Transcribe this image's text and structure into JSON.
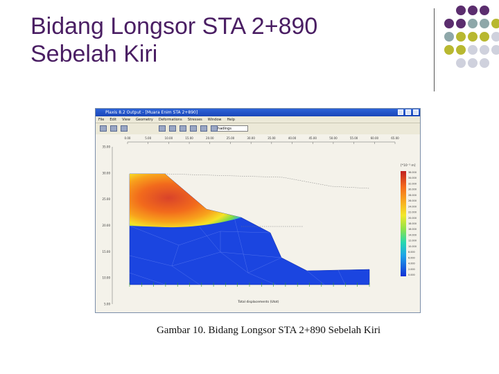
{
  "slide": {
    "title_line1": "Bidang Longsor STA 2+890",
    "title_line2": "Sebelah Kiri",
    "caption": "Gambar 10. Bidang Longsor STA 2+890 Sebelah Kiri"
  },
  "colors": {
    "title": "#4a1e63",
    "dot_purple": "#5b2d6e",
    "dot_teal": "#8ea7a9",
    "dot_olive": "#b8b830",
    "dot_grey": "#cfd1dd"
  },
  "app": {
    "window_title": "Plaxis 8.2 Output - [Muara Enim STA 2+890]",
    "menu": [
      "File",
      "Edit",
      "View",
      "Geometry",
      "Deformations",
      "Stresses",
      "Window",
      "Help"
    ],
    "toolbar_select": "Shadings",
    "toolbar_icons": [
      "open-icon",
      "save-icon",
      "print-icon",
      "zoom-in-icon",
      "zoom-out-icon",
      "select-icon",
      "table-icon",
      "curves-icon",
      "ruler-icon"
    ],
    "plot": {
      "x_ticks": [
        "0.00",
        "5.00",
        "10.00",
        "15.00",
        "20.00",
        "25.00",
        "30.00",
        "35.00",
        "40.00",
        "45.00",
        "50.00",
        "55.00",
        "60.00",
        "65.00"
      ],
      "y_ticks": [
        "35.00",
        "30.00",
        "25.00",
        "20.00",
        "15.00",
        "10.00",
        "5.00"
      ],
      "x_title": "Total displacements (Utot)",
      "legend_unit": "[*10⁻³ m]",
      "legend_values": [
        "36.000",
        "34.000",
        "32.000",
        "30.000",
        "28.000",
        "26.000",
        "24.000",
        "22.000",
        "20.000",
        "18.000",
        "16.000",
        "14.000",
        "12.000",
        "10.000",
        "8.000",
        "6.000",
        "4.000",
        "2.000",
        "0.000"
      ]
    }
  }
}
